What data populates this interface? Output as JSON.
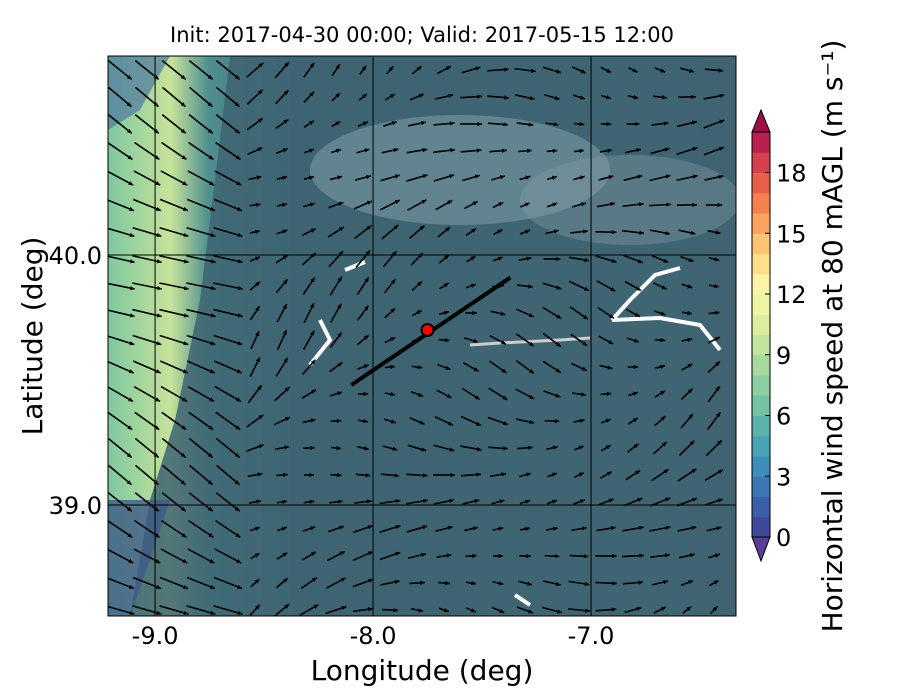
{
  "chart_data": {
    "type": "map",
    "title": "Init: 2017-04-30 00:00; Valid: 2017-05-15 12:00",
    "x_label": "Longitude (deg)",
    "y_label": "Latitude (deg)",
    "xlim": [
      -9.216,
      -6.335
    ],
    "ylim": [
      38.556,
      40.796
    ],
    "xticks": [
      {
        "value": -9,
        "label": "-9.0"
      },
      {
        "value": -8,
        "label": "-8.0"
      },
      {
        "value": -7,
        "label": "-7.0"
      }
    ],
    "yticks": [
      {
        "value": 40,
        "label": "40.0"
      },
      {
        "value": 39,
        "label": "39.0"
      }
    ],
    "grid": true,
    "point": {
      "x": -7.75,
      "y": 39.7,
      "color": "#ff0000"
    },
    "line": {
      "x": [
        -8.1,
        -7.37
      ],
      "y": [
        39.48,
        39.91
      ],
      "color": "#000000"
    },
    "colorbar": {
      "label": "Horizontal wind speed at 80 mAGL (m s⁻¹)",
      "lim": [
        0,
        20
      ],
      "ticks": [
        0,
        3,
        6,
        9,
        12,
        15,
        18
      ],
      "colors": [
        "#3d4a9c",
        "#3a5fa8",
        "#3a77b3",
        "#3e8fb8",
        "#4aa3b5",
        "#5cb3aa",
        "#72c2a3",
        "#8dcfa2",
        "#a8daa0",
        "#c2e49f",
        "#dbee9e",
        "#eef6a5",
        "#fbf3a8",
        "#fedf8b",
        "#fdc474",
        "#fba45f",
        "#f5814f",
        "#e85f47",
        "#d4404b",
        "#b8204f"
      ],
      "extend_colors": [
        "#5b3d95",
        "#9e0f48"
      ]
    }
  }
}
